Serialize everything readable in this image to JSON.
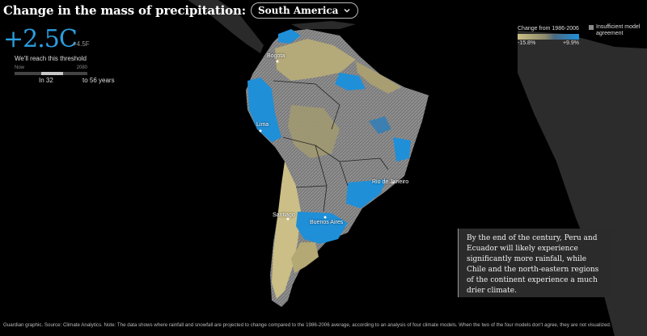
{
  "header": {
    "title": "Change in the mass of precipitation:",
    "region_select": "South America"
  },
  "temperature": {
    "celsius": "+2.5C",
    "fahrenheit": "+4.5F",
    "threshold_label": "We'll reach this threshold",
    "axis_start": "Now",
    "axis_end": "2080",
    "years_from": "In 32",
    "years_to": "to 56 years",
    "range_start_fraction": 0.37,
    "range_end_fraction": 0.67
  },
  "legend": {
    "title": "Change from 1986-2006",
    "min": "-15.8%",
    "max": "+9.9%",
    "insufficient": "Insufficient model agreement",
    "colors": {
      "dry": "#cbbe86",
      "neutral": "#8e8a6c",
      "wet": "#1f8fd8",
      "no_agreement": "#8a8a8a"
    }
  },
  "cities": {
    "bogota": "Bogota",
    "lima": "Lima",
    "rio": "Rio de Janeiro",
    "santiago": "Santiago",
    "buenos_aires": "Buenos Aires"
  },
  "annotation": "By the end of the century, Peru and Ecuador will likely experience significantly more rainfall, while Chile and the north-eastern regions of the continent experience a much drier climate.",
  "footnote": "Guardian graphic. Source: Climate Analytics. Note: The data shows where rainfall and snowfall are projected to change compared to the 1986-2006 average, according to an analysis of four climate models. When the two of the four models don't agree, they are not visualized."
}
